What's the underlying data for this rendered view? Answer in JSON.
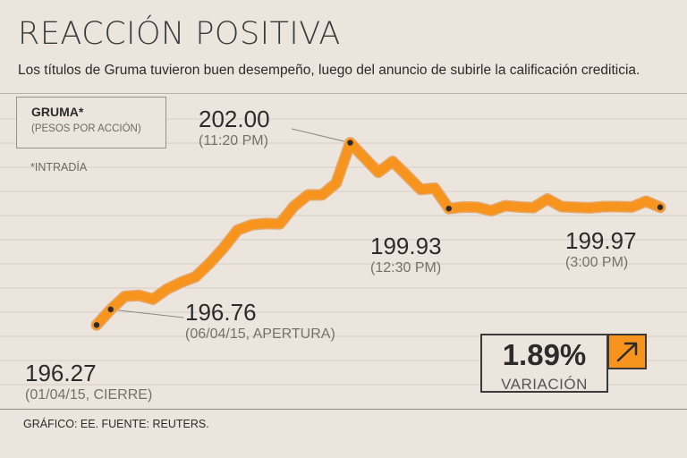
{
  "header": {
    "title": "REACCIÓN POSITIVA",
    "subtitle": "Los títulos de Gruma tuvieron buen desempeño, luego del anuncio de subirle la calificación crediticia."
  },
  "legend": {
    "name": "GRUMA*",
    "unit": "(PESOS POR ACCIÓN)",
    "note": "*INTRADÍA"
  },
  "variation": {
    "value": "1.89%",
    "label": "VARIACIÓN",
    "arrow_icon": "arrow-up-right-icon",
    "accent_color": "#f7941d"
  },
  "source": "GRÁFICO: EE. FUENTE: REUTERS.",
  "chart_data": {
    "type": "line",
    "title": "REACCIÓN POSITIVA",
    "line_color": "#f7941d",
    "grid": true,
    "ylim": [
      195.8,
      202.55
    ],
    "values": [
      196.27,
      196.76,
      197.17,
      197.2,
      197.08,
      197.4,
      197.61,
      197.78,
      198.2,
      198.69,
      199.25,
      199.42,
      199.46,
      199.45,
      200.0,
      200.36,
      200.36,
      200.73,
      202.0,
      201.53,
      201.07,
      201.41,
      200.98,
      200.53,
      200.57,
      199.93,
      199.98,
      199.97,
      199.86,
      200.02,
      199.98,
      199.96,
      200.23,
      199.99,
      199.97,
      199.95,
      199.99,
      199.99,
      199.98,
      200.16,
      199.97
    ],
    "annotations": [
      {
        "index": 0,
        "value": "196.27",
        "time": "(01/04/15, CIERRE)"
      },
      {
        "index": 1,
        "value": "196.76",
        "time": "(06/04/15, APERTURA)"
      },
      {
        "index": 18,
        "value": "202.00",
        "time": "(11:20 PM)"
      },
      {
        "index": 25,
        "value": "199.93",
        "time": "(12:30 PM)"
      },
      {
        "index": 40,
        "value": "199.97",
        "time": "(3:00 PM)"
      }
    ]
  }
}
